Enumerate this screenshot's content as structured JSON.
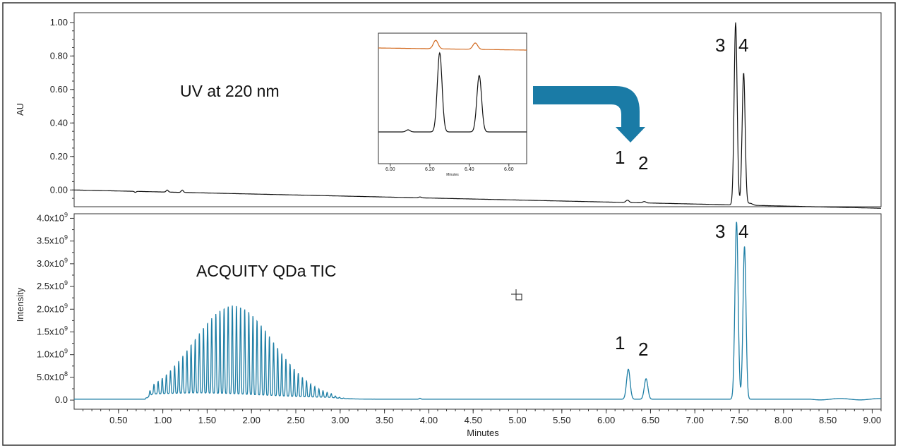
{
  "colors": {
    "uv_trace": "#111111",
    "tic_trace": "#1f7fa6",
    "arrow": "#1a7ba6",
    "inset_orange": "#d2691e"
  },
  "chart_data": [
    {
      "type": "line",
      "panel": "uv",
      "ylabel": "AU",
      "annotation": "UV at 220 nm",
      "ylim": [
        -0.1,
        1.05
      ],
      "yticks": [
        "1.00",
        "0.80",
        "0.60",
        "0.40",
        "0.20",
        "0.00"
      ],
      "ytick_values": [
        1.0,
        0.8,
        0.6,
        0.4,
        0.2,
        0.0
      ],
      "xlim": [
        0.0,
        9.1
      ],
      "peaks": [
        {
          "label": "1",
          "x": 6.24,
          "y": -0.045
        },
        {
          "label": "2",
          "x": 6.43,
          "y": -0.055
        },
        {
          "label": "3",
          "x": 7.46,
          "y": 1.01
        },
        {
          "label": "4",
          "x": 7.55,
          "y": 0.71
        }
      ],
      "peak_labels": [
        "1",
        "2",
        "3",
        "4"
      ],
      "inset": {
        "xticks": [
          "6.00",
          "6.20",
          "6.40",
          "6.60"
        ],
        "xtick_values": [
          6.0,
          6.2,
          6.4,
          6.6
        ],
        "xlabel": "Minutes",
        "xlim": [
          5.94,
          6.69
        ],
        "series": [
          {
            "color": "orange",
            "peaks": [
              {
                "x": 6.23,
                "h": 0.3
              },
              {
                "x": 6.43,
                "h": 0.22
              }
            ]
          },
          {
            "color": "black",
            "peaks": [
              {
                "x": 6.25,
                "h": 1.0
              },
              {
                "x": 6.45,
                "h": 0.72
              }
            ]
          }
        ]
      }
    },
    {
      "type": "line",
      "panel": "tic",
      "ylabel": "Intensity",
      "annotation": "ACQUITY QDa TIC",
      "ylim": [
        -200000000.0,
        4100000000.0
      ],
      "yticks": [
        {
          "m": "4.0x10",
          "e": "9"
        },
        {
          "m": "3.5x10",
          "e": "9"
        },
        {
          "m": "3.0x10",
          "e": "9"
        },
        {
          "m": "2.5x10",
          "e": "9"
        },
        {
          "m": "2.0x10",
          "e": "9"
        },
        {
          "m": "1.5x10",
          "e": "9"
        },
        {
          "m": "1.0x10",
          "e": "9"
        },
        {
          "m": "5.0x10",
          "e": "8"
        },
        {
          "m": "0.0",
          "e": ""
        }
      ],
      "ytick_values": [
        4000000000.0,
        3500000000.0,
        3000000000.0,
        2500000000.0,
        2000000000.0,
        1500000000.0,
        1000000000.0,
        500000000.0,
        0.0
      ],
      "xlim": [
        0.0,
        9.1
      ],
      "xlabel": "Minutes",
      "xticks": [
        "0.50",
        "1.00",
        "1.50",
        "2.00",
        "2.50",
        "3.00",
        "3.50",
        "4.00",
        "4.50",
        "5.00",
        "5.50",
        "6.00",
        "6.50",
        "7.00",
        "7.50",
        "8.00",
        "8.50",
        "9.00"
      ],
      "xtick_values": [
        0.5,
        1.0,
        1.5,
        2.0,
        2.5,
        3.0,
        3.5,
        4.0,
        4.5,
        5.0,
        5.5,
        6.0,
        6.5,
        7.0,
        7.5,
        8.0,
        8.5,
        9.0
      ],
      "polymer_envelope": {
        "start": 0.8,
        "end": 2.9,
        "max_intensity": 2000000000.0,
        "max_at": 1.8
      },
      "peaks": [
        {
          "label": "1",
          "x": 6.25,
          "y": 680000000.0
        },
        {
          "label": "2",
          "x": 6.45,
          "y": 470000000.0
        },
        {
          "label": "3",
          "x": 7.47,
          "y": 3920000000.0
        },
        {
          "label": "4",
          "x": 7.56,
          "y": 3380000000.0
        }
      ],
      "peak_labels": [
        "1",
        "2",
        "3",
        "4"
      ]
    }
  ]
}
